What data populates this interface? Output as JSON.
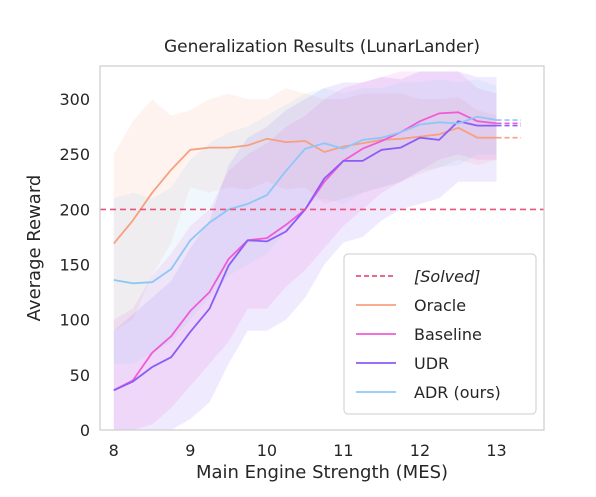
{
  "chart_data": {
    "type": "line",
    "title": "Generalization Results (LunarLander)",
    "xlabel": "Main Engine Strength (MES)",
    "ylabel": "Average Reward",
    "xlim": [
      7.82,
      13.62
    ],
    "ylim": [
      0,
      330
    ],
    "xticks": [
      8,
      9,
      10,
      11,
      12,
      13
    ],
    "yticks": [
      0,
      50,
      100,
      150,
      200,
      250,
      300
    ],
    "grid": false,
    "legend_position": "lower-right",
    "threshold": {
      "name": "[Solved]",
      "value": 200,
      "color": "#e8557b"
    },
    "x": [
      8.0,
      8.25,
      8.5,
      8.75,
      9.0,
      9.25,
      9.5,
      9.75,
      10.0,
      10.25,
      10.5,
      10.75,
      11.0,
      11.25,
      11.5,
      11.75,
      12.0,
      12.25,
      12.5,
      12.75,
      13.0
    ],
    "series": [
      {
        "name": "Oracle",
        "color": "#f7a080",
        "values": [
          169,
          190,
          215,
          236,
          254,
          256,
          256,
          258,
          264,
          261,
          262,
          252,
          257,
          260,
          263,
          264,
          266,
          268,
          274,
          265,
          265
        ],
        "lower": [
          90,
          100,
          140,
          170,
          220,
          215,
          220,
          218,
          225,
          218,
          220,
          205,
          210,
          215,
          220,
          225,
          232,
          238,
          245,
          240,
          245
        ],
        "upper": [
          250,
          280,
          300,
          285,
          290,
          300,
          305,
          300,
          300,
          310,
          305,
          300,
          300,
          305,
          305,
          305,
          300,
          300,
          302,
          290,
          285
        ]
      },
      {
        "name": "Baseline",
        "color": "#f15bd6",
        "values": [
          36,
          45,
          70,
          85,
          108,
          125,
          155,
          172,
          174,
          186,
          200,
          225,
          244,
          255,
          262,
          270,
          280,
          287,
          288,
          280,
          278
        ],
        "lower": [
          0,
          0,
          5,
          20,
          40,
          60,
          80,
          110,
          110,
          130,
          145,
          165,
          185,
          200,
          215,
          225,
          235,
          245,
          250,
          245,
          245
        ],
        "upper": [
          100,
          110,
          140,
          160,
          185,
          200,
          235,
          250,
          260,
          275,
          285,
          300,
          310,
          315,
          320,
          325,
          325,
          325,
          325,
          310,
          305
        ]
      },
      {
        "name": "UDR",
        "color": "#8b5cf6",
        "values": [
          36,
          44,
          57,
          66,
          89,
          110,
          149,
          172,
          171,
          180,
          200,
          228,
          244,
          244,
          254,
          256,
          265,
          263,
          280,
          276,
          276
        ],
        "lower": [
          0,
          0,
          0,
          0,
          10,
          25,
          60,
          90,
          90,
          100,
          120,
          150,
          170,
          175,
          190,
          200,
          205,
          210,
          225,
          225,
          225
        ],
        "upper": [
          90,
          105,
          120,
          135,
          165,
          190,
          240,
          265,
          275,
          290,
          300,
          310,
          315,
          315,
          320,
          318,
          325,
          325,
          325,
          320,
          320
        ]
      },
      {
        "name": "ADR (ours)",
        "color": "#8cc8f7",
        "values": [
          136,
          133,
          134,
          146,
          172,
          188,
          200,
          205,
          213,
          235,
          255,
          260,
          255,
          263,
          265,
          270,
          277,
          279,
          278,
          284,
          281
        ],
        "lower": [
          60,
          60,
          70,
          80,
          100,
          120,
          140,
          150,
          160,
          180,
          205,
          210,
          205,
          215,
          220,
          225,
          235,
          238,
          240,
          250,
          250
        ],
        "upper": [
          210,
          215,
          210,
          220,
          245,
          260,
          270,
          275,
          285,
          295,
          305,
          310,
          305,
          310,
          310,
          315,
          315,
          318,
          315,
          318,
          312
        ]
      }
    ]
  }
}
